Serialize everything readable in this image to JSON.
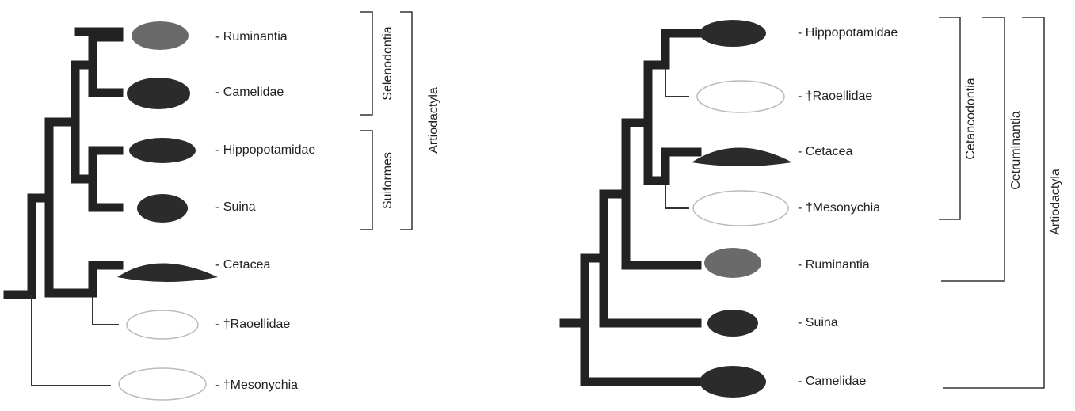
{
  "left_tree": {
    "leaves": [
      "- Ruminantia",
      "- Camelidae",
      "- Hippopotamidae",
      "- Suina",
      "- Cetacea",
      "- †Raoellidae",
      "- †Mesonychia"
    ],
    "clades": [
      "Selenodontia",
      "Suiformes",
      "Artiodactyla"
    ]
  },
  "right_tree": {
    "leaves": [
      "- Hippopotamidae",
      "- †Raoellidae",
      "- Cetacea",
      "- †Mesonychia",
      "- Ruminantia",
      "- Suina",
      "- Camelidae"
    ],
    "clades": [
      "Cetancodontia",
      "Cetruminantia",
      "Artiodactyla"
    ]
  }
}
